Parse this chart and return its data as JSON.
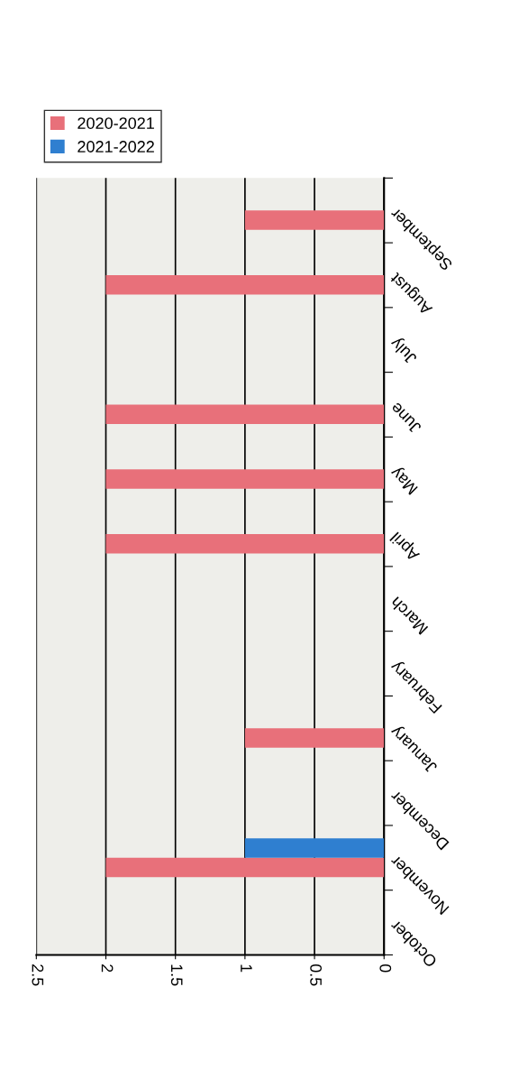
{
  "chart_data": {
    "type": "bar",
    "orientation": "horizontal",
    "categories": [
      "September",
      "August",
      "July",
      "June",
      "May",
      "April",
      "March",
      "February",
      "January",
      "December",
      "November",
      "October"
    ],
    "series": [
      {
        "name": "2020-2021",
        "color": "#e8707a",
        "values": [
          1,
          2,
          0,
          2,
          2,
          2,
          0,
          0,
          1,
          0,
          2,
          0
        ]
      },
      {
        "name": "2021-2022",
        "color": "#2f7fd0",
        "values": [
          0,
          0,
          0,
          0,
          0,
          0,
          0,
          0,
          0,
          0,
          1,
          0
        ]
      }
    ],
    "xlim": [
      2.5,
      0
    ],
    "xticks": [
      2.5,
      2,
      1.5,
      1,
      0.5,
      0
    ],
    "grid": "x",
    "legend": "top left"
  }
}
